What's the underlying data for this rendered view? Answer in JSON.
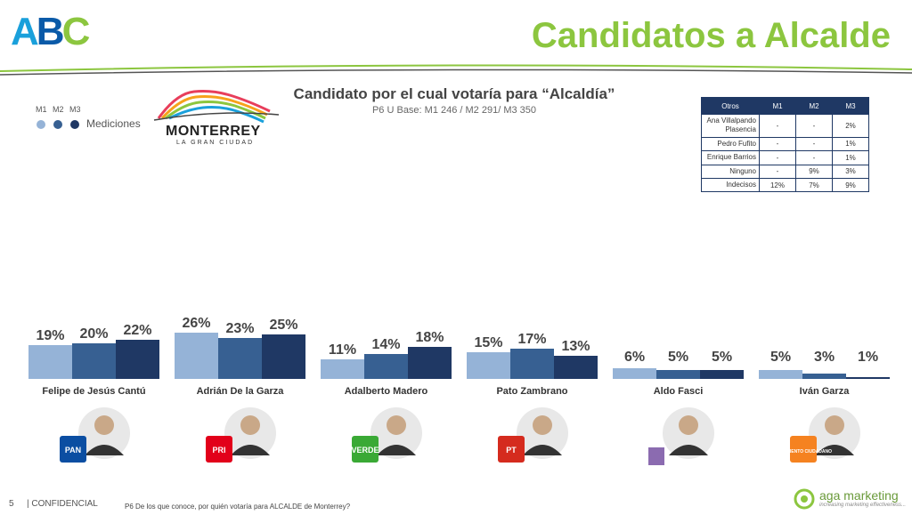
{
  "header": {
    "logo": "ABC",
    "title": "Candidatos a Alcalde"
  },
  "chart_header": {
    "title": "Candidato por el cual votaría para “Alcaldía”",
    "subtitle": "P6 U Base: M1 246 / M2 291/ M3 350"
  },
  "legend": {
    "labels": [
      "M1",
      "M2",
      "M3"
    ],
    "caption": "Mediciones"
  },
  "city_logo": {
    "name": "MONTERREY",
    "tagline": "LA GRAN CIUDAD"
  },
  "others_table": {
    "headers": [
      "Otros",
      "M1",
      "M2",
      "M3"
    ],
    "rows": [
      [
        "Ana Villalpando Plasencia",
        "-",
        "-",
        "2%"
      ],
      [
        "Pedro Fufito",
        "-",
        "-",
        "1%"
      ],
      [
        "Enrique Barrios",
        "-",
        "-",
        "1%"
      ],
      [
        "Ninguno",
        "-",
        "9%",
        "3%"
      ],
      [
        "Indecisos",
        "12%",
        "7%",
        "9%"
      ]
    ]
  },
  "party_labels": {
    "pan": "PAN",
    "pri": "PRI",
    "verde": "VERDE",
    "pt": "PT",
    "mc": "MOVIMIENTO CIUDADANO"
  },
  "chart_data": {
    "type": "bar",
    "categories": [
      "Felipe de Jesús Cantú",
      "Adrián De la Garza",
      "Adalberto Madero",
      "Pato Zambrano",
      "Aldo Fasci",
      "Iván Garza"
    ],
    "series": [
      {
        "name": "M1",
        "values": [
          19,
          26,
          11,
          15,
          6,
          5
        ]
      },
      {
        "name": "M2",
        "values": [
          20,
          23,
          14,
          17,
          5,
          3
        ]
      },
      {
        "name": "M3",
        "values": [
          22,
          25,
          18,
          13,
          5,
          1
        ]
      }
    ],
    "value_suffix": "%",
    "colors": [
      "#95b3d7",
      "#376092",
      "#1f3864"
    ],
    "grid": false
  },
  "footer": {
    "page": "5",
    "confidential": "| CONFIDENCIAL",
    "footnote": "P6 De los que conoce, por quién votaría para ALCALDE de Monterrey?",
    "brand": "aga marketing",
    "brand_tagline": "increasing marketing effectiveness..."
  }
}
